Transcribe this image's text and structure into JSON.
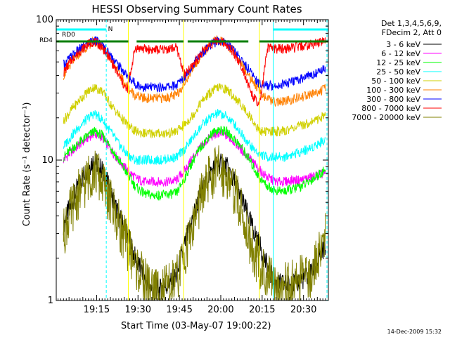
{
  "chart_data": {
    "type": "line",
    "title": "HESSI Observing Summary Count Rates",
    "xlabel": "Start Time (03-May-07 19:00:22)",
    "ylabel": "Count Rate (s⁻¹ detector⁻¹)",
    "y_scale": "log",
    "ylim": [
      1,
      100
    ],
    "xlim": [
      "19:00:22",
      "20:39:00"
    ],
    "y_ticks": [
      {
        "value": 1,
        "label": "1"
      },
      {
        "value": 10,
        "label": "10"
      },
      {
        "value": 100,
        "label": "100"
      }
    ],
    "x_ticks": [
      {
        "value": "19:15",
        "label": "19:15"
      },
      {
        "value": "19:30",
        "label": "19:30"
      },
      {
        "value": "19:45",
        "label": "19:45"
      },
      {
        "value": "20:00",
        "label": "20:00"
      },
      {
        "value": "20:15",
        "label": "20:15"
      },
      {
        "value": "20:30",
        "label": "20:30"
      }
    ],
    "legend": {
      "header": [
        "Det 1,3,4,5,6,9,",
        "FDecim 2, Att 0"
      ],
      "placement": "right"
    },
    "flags": [
      {
        "label": "N",
        "color": "#00ffff",
        "intervals": [
          [
            "19:00:22",
            "19:18:30"
          ],
          [
            "20:19:00",
            "20:39:00"
          ]
        ]
      },
      {
        "label": "RD0",
        "color": "#00ffff",
        "intervals": []
      },
      {
        "label": "RD4",
        "color": "#007f00",
        "intervals": [
          [
            "19:00:22",
            "19:26:30"
          ],
          [
            "19:29:30",
            "19:46:30"
          ],
          [
            "19:48:00",
            "20:10:00"
          ],
          [
            "20:14:00",
            "20:39:00"
          ]
        ]
      }
    ],
    "markers": {
      "solid": [
        "19:26:30",
        "19:46:30",
        "20:14:00",
        "20:39:00"
      ],
      "dashed": [
        "19:18:30",
        "20:38:30"
      ],
      "cyan_solid": [
        "20:19:00"
      ]
    },
    "series": [
      {
        "name": "3 - 6 keV",
        "color": "#000000",
        "x": [
          "19:03",
          "19:06",
          "19:09",
          "19:12",
          "19:14",
          "19:17",
          "19:20",
          "19:23",
          "19:26",
          "19:29",
          "19:32",
          "19:35",
          "19:38",
          "19:41",
          "19:44",
          "19:47",
          "19:50",
          "19:53",
          "19:56",
          "19:59",
          "20:02",
          "20:05",
          "20:08",
          "20:11",
          "20:14",
          "20:17",
          "20:20",
          "20:23",
          "20:26",
          "20:29",
          "20:32",
          "20:35",
          "20:38"
        ],
        "y": [
          3.5,
          5,
          7,
          9,
          10,
          8.5,
          6,
          4,
          3,
          2,
          1.5,
          1.2,
          1.2,
          1.3,
          1.5,
          2.5,
          4,
          6,
          8,
          9.5,
          9,
          7,
          5,
          3.5,
          2.5,
          1.7,
          1.3,
          1.3,
          1.3,
          1.4,
          1.5,
          1.8,
          2.5
        ]
      },
      {
        "name": "6 - 12 keV",
        "color": "#ff00ff",
        "x": [
          "19:03",
          "19:06",
          "19:09",
          "19:12",
          "19:14",
          "19:17",
          "19:20",
          "19:23",
          "19:26",
          "19:29",
          "19:32",
          "19:35",
          "19:38",
          "19:41",
          "19:44",
          "19:47",
          "19:50",
          "19:53",
          "19:56",
          "19:59",
          "20:02",
          "20:05",
          "20:08",
          "20:11",
          "20:14",
          "20:17",
          "20:20",
          "20:23",
          "20:26",
          "20:29",
          "20:32",
          "20:35",
          "20:38"
        ],
        "y": [
          10,
          11.5,
          13,
          14.5,
          15.5,
          14.5,
          12,
          10,
          8.5,
          7.5,
          7,
          7,
          7,
          7,
          7.2,
          8.5,
          10.5,
          12.5,
          14.5,
          15.5,
          15,
          13.5,
          11.5,
          10,
          8.5,
          7.5,
          7,
          7,
          7.2,
          7.2,
          7.5,
          7.8,
          8
        ]
      },
      {
        "name": "12 - 25 keV",
        "color": "#00ff00",
        "x": [
          "19:03",
          "19:06",
          "19:09",
          "19:12",
          "19:14",
          "19:17",
          "19:20",
          "19:23",
          "19:26",
          "19:29",
          "19:32",
          "19:35",
          "19:38",
          "19:41",
          "19:44",
          "19:47",
          "19:50",
          "19:53",
          "19:56",
          "19:59",
          "20:02",
          "20:05",
          "20:08",
          "20:11",
          "20:14",
          "20:17",
          "20:20",
          "20:23",
          "20:26",
          "20:29",
          "20:32",
          "20:35",
          "20:38"
        ],
        "y": [
          10.5,
          12,
          13.5,
          15,
          16,
          15,
          12.5,
          10,
          8,
          6.5,
          5.8,
          5.6,
          5.6,
          5.7,
          5.8,
          7.5,
          10,
          12.5,
          15,
          16.5,
          16,
          14,
          12,
          9.5,
          7.5,
          6.5,
          6,
          6,
          6.2,
          6.5,
          7,
          7.8,
          8.5
        ]
      },
      {
        "name": "25 - 50 keV",
        "color": "#00ffff",
        "x": [
          "19:03",
          "19:06",
          "19:09",
          "19:12",
          "19:14",
          "19:17",
          "19:20",
          "19:23",
          "19:26",
          "19:29",
          "19:32",
          "19:35",
          "19:38",
          "19:41",
          "19:44",
          "19:47",
          "19:50",
          "19:53",
          "19:56",
          "19:59",
          "20:02",
          "20:05",
          "20:08",
          "20:11",
          "20:14",
          "20:17",
          "20:20",
          "20:23",
          "20:26",
          "20:29",
          "20:32",
          "20:35",
          "20:38"
        ],
        "y": [
          12.5,
          15,
          17.5,
          20,
          21.5,
          19.5,
          16,
          13,
          11,
          10,
          10,
          10,
          10,
          10.2,
          10.5,
          12,
          14.5,
          17.5,
          20,
          21.5,
          20.5,
          18,
          15,
          12.5,
          11,
          10.5,
          10.5,
          10.5,
          11,
          11.5,
          12,
          13,
          14
        ]
      },
      {
        "name": "50 - 100 keV",
        "color": "#d0d000",
        "x": [
          "19:03",
          "19:06",
          "19:09",
          "19:12",
          "19:14",
          "19:17",
          "19:20",
          "19:23",
          "19:26",
          "19:29",
          "19:32",
          "19:35",
          "19:38",
          "19:41",
          "19:44",
          "19:47",
          "19:50",
          "19:53",
          "19:56",
          "19:59",
          "20:02",
          "20:05",
          "20:08",
          "20:11",
          "20:14",
          "20:17",
          "20:20",
          "20:23",
          "20:26",
          "20:29",
          "20:32",
          "20:35",
          "20:38"
        ],
        "y": [
          19,
          23,
          27,
          31,
          33,
          31,
          25,
          21,
          18,
          16,
          15.5,
          15.5,
          15.5,
          15.5,
          16,
          18,
          21,
          26,
          30,
          33,
          32,
          28,
          24,
          20,
          16,
          16,
          16,
          16,
          17,
          17.5,
          18.5,
          19.5,
          21
        ]
      },
      {
        "name": "100 - 300 keV",
        "color": "#ff8000",
        "x": [
          "19:03",
          "19:06",
          "19:09",
          "19:12",
          "19:14",
          "19:17",
          "19:20",
          "19:23",
          "19:26",
          "19:29",
          "19:32",
          "19:35",
          "19:38",
          "19:41",
          "19:44",
          "19:47",
          "19:50",
          "19:53",
          "19:56",
          "19:59",
          "20:02",
          "20:05",
          "20:08",
          "20:11",
          "20:14",
          "20:17",
          "20:20",
          "20:23",
          "20:26",
          "20:29",
          "20:32",
          "20:35",
          "20:38"
        ],
        "y": [
          40,
          50,
          58,
          66,
          70,
          64,
          52,
          42,
          33,
          29,
          27.5,
          27.5,
          27.5,
          28,
          29,
          36,
          46,
          56,
          66,
          72,
          68,
          58,
          47,
          38,
          31,
          27,
          26,
          26,
          27,
          28,
          29,
          30.5,
          32
        ]
      },
      {
        "name": "300 - 800 keV",
        "color": "#0000ff",
        "x": [
          "19:03",
          "19:06",
          "19:09",
          "19:12",
          "19:14",
          "19:17",
          "19:20",
          "19:23",
          "19:26",
          "19:29",
          "19:32",
          "19:35",
          "19:38",
          "19:41",
          "19:44",
          "19:47",
          "19:50",
          "19:53",
          "19:56",
          "19:59",
          "20:02",
          "20:05",
          "20:08",
          "20:11",
          "20:14",
          "20:17",
          "20:20",
          "20:23",
          "20:26",
          "20:29",
          "20:32",
          "20:35",
          "20:38"
        ],
        "y": [
          48,
          55,
          62,
          68,
          72,
          66,
          56,
          47,
          40,
          35,
          33,
          33,
          33,
          33.5,
          34,
          40,
          48,
          57,
          65,
          71,
          69,
          60,
          50,
          42,
          35,
          34,
          34,
          35,
          36,
          38,
          40,
          42,
          45
        ]
      },
      {
        "name": "800 - 7000 keV",
        "color": "#ff0000",
        "x": [
          "19:03",
          "19:06",
          "19:09",
          "19:12",
          "19:14",
          "19:17",
          "19:20",
          "19:23",
          "19:26",
          "19:29",
          "19:32",
          "19:35",
          "19:38",
          "19:41",
          "19:44",
          "19:47",
          "19:50",
          "19:53",
          "19:56",
          "19:59",
          "20:02",
          "20:05",
          "20:08",
          "20:11",
          "20:14",
          "20:17",
          "20:20",
          "20:23",
          "20:26",
          "20:29",
          "20:32",
          "20:35",
          "20:38"
        ],
        "y": [
          42,
          52,
          60,
          67,
          70,
          64,
          52,
          40,
          31,
          63,
          62,
          61,
          61,
          62,
          63,
          40,
          48,
          58,
          66,
          71,
          67,
          57,
          45,
          30,
          24,
          63,
          62,
          62,
          63,
          64,
          66,
          68,
          72
        ]
      },
      {
        "name": "7000 - 20000 keV",
        "color": "#808000",
        "x": [
          "19:03",
          "19:06",
          "19:09",
          "19:12",
          "19:14",
          "19:17",
          "19:20",
          "19:23",
          "19:26",
          "19:29",
          "19:32",
          "19:35",
          "19:38",
          "19:41",
          "19:44",
          "19:47",
          "19:50",
          "19:53",
          "19:56",
          "19:59",
          "20:02",
          "20:05",
          "20:08",
          "20:11",
          "20:14",
          "20:17",
          "20:20",
          "20:23",
          "20:26",
          "20:29",
          "20:32",
          "20:35",
          "20:38"
        ],
        "y": [
          3,
          4.5,
          6,
          7.5,
          8.5,
          7,
          5,
          3.5,
          2.5,
          1.8,
          1.4,
          1.2,
          1.2,
          1.2,
          1.4,
          2.2,
          3.5,
          5.5,
          7.5,
          8.5,
          8,
          6,
          4,
          2.5,
          1.8,
          1.4,
          1.3,
          1.3,
          1.3,
          1.4,
          1.5,
          2,
          3
        ]
      }
    ]
  },
  "footer": {
    "timestamp": "14-Dec-2009 15:32"
  }
}
